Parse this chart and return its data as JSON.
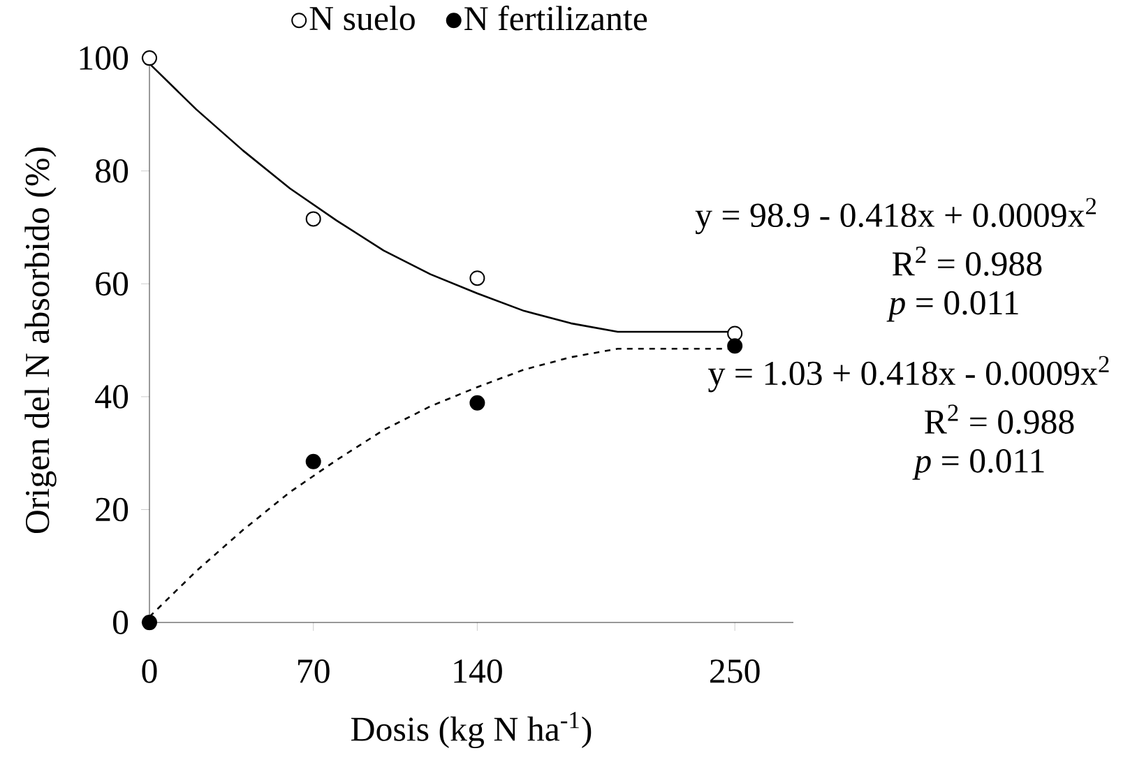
{
  "chart_data": {
    "type": "scatter",
    "xlabel": "Dosis (kg N ha$^{-1}$)",
    "ylabel": "Origen del N absorbido (%)",
    "x": [
      0,
      70,
      140,
      250
    ],
    "series": [
      {
        "name": "N suelo",
        "color": "#ffffff",
        "marker": "circle",
        "values": [
          100,
          71.5,
          61,
          51.2
        ]
      },
      {
        "name": "N fertilizante",
        "color": "#000000",
        "marker": "circle",
        "values": [
          0,
          28.5,
          38.9,
          49
        ]
      },
      {
        "type": "line",
        "color": "#000000",
        "line_style": "solid",
        "x": [
          0,
          20,
          40,
          60,
          80,
          100,
          120,
          140,
          160,
          180,
          200,
          250
        ],
        "values": [
          99,
          90.9,
          83.6,
          76.9,
          71.2,
          65.9,
          61.7,
          58.3,
          55.2,
          53,
          51.5,
          51.5
        ]
      },
      {
        "type": "line",
        "color": "#000000",
        "line_style": "dashed",
        "x": [
          0,
          20,
          40,
          60,
          80,
          100,
          120,
          140,
          160,
          180,
          200,
          250
        ],
        "values": [
          1,
          9.1,
          16.4,
          23.1,
          28.8,
          34.1,
          38.3,
          41.7,
          44.8,
          47,
          48.5,
          48.5
        ]
      }
    ],
    "xlim": [
      0,
      275
    ],
    "ylim": [
      0,
      100
    ],
    "xticks": [
      0,
      70,
      140,
      250
    ],
    "yticks": [
      0,
      20,
      40,
      60,
      80,
      100
    ],
    "legend": "top",
    "grid": false,
    "annotations": [
      "y = 98.9 - 0.418x + 0.0009x$^{2}$",
      "R$^{2}$ = 0.988",
      "*p* = 0.011",
      "y = 1.03 + 0.418x - 0.0009x$^{2}$",
      "R$^{2}$ = 0.988",
      "*p* = 0.011"
    ]
  }
}
